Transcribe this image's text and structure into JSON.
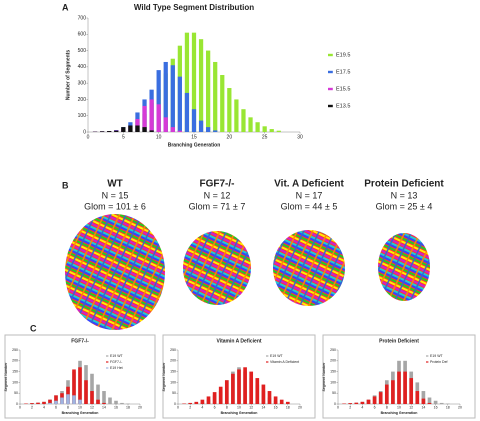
{
  "panel_labels": [
    "A",
    "B",
    "C"
  ],
  "panels": [
    {
      "name": "WT",
      "n": "N = 15",
      "glom": "Glom = 101 ± 6"
    },
    {
      "name": "FGF7-/-",
      "n": "N = 12",
      "glom": "Glom = 71 ± 7"
    },
    {
      "name": "Vit. A Deficient",
      "n": "N = 17",
      "glom": "Glom = 44 ± 5"
    },
    {
      "name": "Protein Deficient",
      "n": "N = 13",
      "glom": "Glom = 25 ± 4"
    }
  ],
  "chart_data": [
    {
      "type": "bar",
      "title": "Wild Type Segment Distribution",
      "x_label": "Branching Generation",
      "y_label": "Number of Segments",
      "x": [
        1,
        2,
        3,
        4,
        5,
        6,
        7,
        8,
        9,
        10,
        11,
        12,
        13,
        14,
        15,
        16,
        17,
        18,
        19,
        20,
        21,
        22,
        23,
        24,
        25,
        26,
        27
      ],
      "series": [
        {
          "name": "E19.5",
          "color": "#99e633",
          "values": [
            2,
            4,
            6,
            12,
            20,
            40,
            70,
            110,
            180,
            260,
            360,
            450,
            530,
            610,
            610,
            570,
            500,
            430,
            350,
            270,
            200,
            140,
            90,
            60,
            35,
            18,
            8
          ]
        },
        {
          "name": "E17.5",
          "color": "#3a6ee0",
          "values": [
            2,
            4,
            6,
            12,
            30,
            60,
            120,
            200,
            260,
            380,
            430,
            410,
            340,
            240,
            140,
            70,
            30,
            10,
            0,
            0,
            0,
            0,
            0,
            0,
            0,
            0,
            0
          ]
        },
        {
          "name": "E15.5",
          "color": "#d63ad6",
          "values": [
            2,
            4,
            6,
            10,
            20,
            40,
            80,
            160,
            200,
            170,
            90,
            30,
            8,
            0,
            0,
            0,
            0,
            0,
            0,
            0,
            0,
            0,
            0,
            0,
            0,
            0,
            0
          ]
        },
        {
          "name": "E13.5",
          "color": "#111111",
          "values": [
            2,
            4,
            6,
            8,
            30,
            40,
            40,
            30,
            10,
            0,
            0,
            0,
            0,
            0,
            0,
            0,
            0,
            0,
            0,
            0,
            0,
            0,
            0,
            0,
            0,
            0,
            0
          ]
        }
      ],
      "xlim": [
        0,
        30
      ],
      "xticks": [
        0,
        5,
        10,
        15,
        20,
        25,
        30
      ],
      "ylim": [
        0,
        700
      ],
      "yticks": [
        0,
        100,
        200,
        300,
        400,
        500,
        600,
        700
      ],
      "grid": false,
      "legend": "right"
    },
    {
      "type": "bar",
      "title": "FGF7-/-",
      "x_label": "Branching Generation",
      "y_label": "Segment Number",
      "x": [
        1,
        2,
        3,
        4,
        5,
        6,
        7,
        8,
        9,
        10,
        11,
        12,
        13,
        14,
        15,
        16,
        17,
        18
      ],
      "series": [
        {
          "name": "E19 WT",
          "color": "#a6a6a6",
          "values": [
            2,
            4,
            6,
            10,
            20,
            40,
            60,
            110,
            150,
            200,
            180,
            140,
            90,
            60,
            30,
            15,
            5,
            2
          ]
        },
        {
          "name": "FGF7-/-",
          "color": "#e02020",
          "values": [
            2,
            4,
            6,
            10,
            20,
            40,
            50,
            80,
            160,
            170,
            110,
            60,
            20,
            5,
            0,
            0,
            0,
            0
          ]
        },
        {
          "name": "E19 Het",
          "color": "#9fb4e0",
          "values": [
            0,
            0,
            0,
            0,
            5,
            15,
            30,
            45,
            40,
            20,
            0,
            0,
            0,
            0,
            0,
            0,
            0,
            0
          ]
        }
      ],
      "xlim": [
        0,
        20
      ],
      "xticks": [
        0,
        2,
        4,
        6,
        8,
        10,
        12,
        14,
        16,
        18,
        20
      ],
      "ylim": [
        0,
        250
      ],
      "yticks": [
        0,
        50,
        100,
        150,
        200,
        250
      ],
      "grid": false,
      "legend": "upper right"
    },
    {
      "type": "bar",
      "title": "Vitamin A Deficient",
      "x_label": "Branching Generation",
      "y_label": "Segment Number",
      "x": [
        1,
        2,
        3,
        4,
        5,
        6,
        7,
        8,
        9,
        10,
        11,
        12,
        13,
        14,
        15,
        16,
        17,
        18
      ],
      "series": [
        {
          "name": "E19 WT",
          "color": "#a6a6a6",
          "values": [
            2,
            4,
            6,
            10,
            20,
            40,
            60,
            110,
            150,
            170,
            150,
            120,
            90,
            60,
            30,
            15,
            5,
            2
          ]
        },
        {
          "name": "Vitamin A Deficient",
          "color": "#e02020",
          "values": [
            2,
            5,
            10,
            20,
            35,
            55,
            80,
            110,
            140,
            160,
            170,
            150,
            120,
            90,
            60,
            35,
            20,
            10
          ]
        }
      ],
      "xlim": [
        0,
        20
      ],
      "xticks": [
        0,
        2,
        4,
        6,
        8,
        10,
        12,
        14,
        16,
        18,
        20
      ],
      "ylim": [
        0,
        250
      ],
      "yticks": [
        0,
        50,
        100,
        150,
        200,
        250
      ],
      "grid": false,
      "legend": "upper right"
    },
    {
      "type": "bar",
      "title": "Protein Deficient",
      "x_label": "Branching Generation",
      "y_label": "Segment Number",
      "x": [
        1,
        2,
        3,
        4,
        5,
        6,
        7,
        8,
        9,
        10,
        11,
        12,
        13,
        14,
        15,
        16,
        17,
        18
      ],
      "series": [
        {
          "name": "E19 WT",
          "color": "#a6a6a6",
          "values": [
            2,
            4,
            6,
            10,
            20,
            40,
            60,
            110,
            150,
            200,
            200,
            150,
            100,
            60,
            30,
            15,
            5,
            2
          ]
        },
        {
          "name": "Protein Def",
          "color": "#e02020",
          "values": [
            2,
            4,
            6,
            10,
            20,
            35,
            55,
            90,
            110,
            150,
            150,
            120,
            60,
            25,
            5,
            0,
            0,
            0
          ]
        }
      ],
      "xlim": [
        0,
        20
      ],
      "xticks": [
        0,
        2,
        4,
        6,
        8,
        10,
        12,
        14,
        16,
        18,
        20
      ],
      "ylim": [
        0,
        250
      ],
      "yticks": [
        0,
        50,
        100,
        150,
        200,
        250
      ],
      "grid": false,
      "legend": "upper right"
    }
  ]
}
